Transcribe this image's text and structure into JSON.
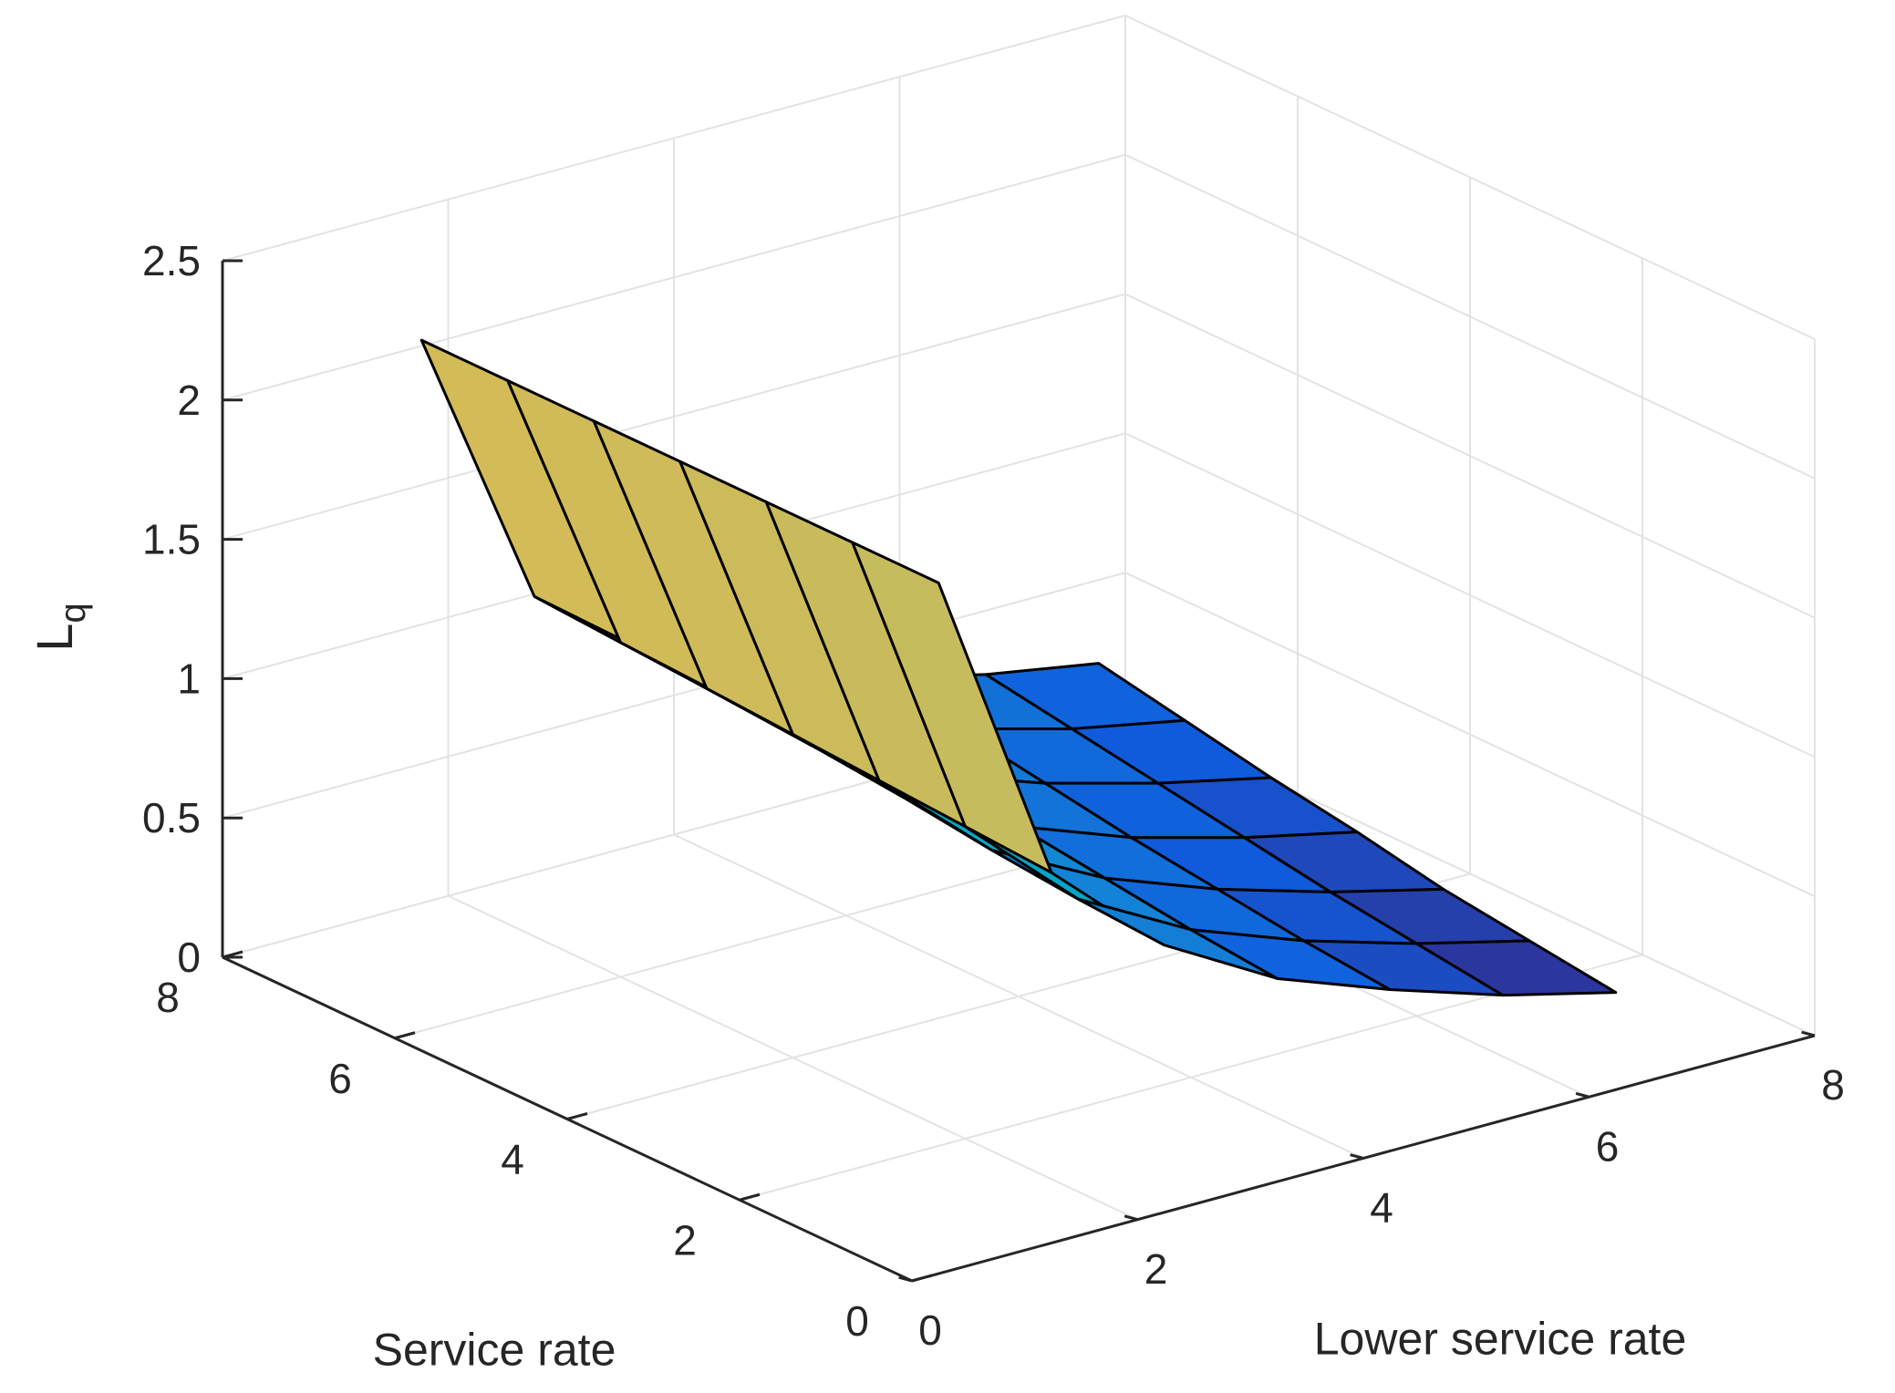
{
  "chart_data": {
    "type": "surface",
    "title": "",
    "xlabel": "Lower service rate",
    "ylabel": "Service rate",
    "zlabel": "L",
    "zlabel_subscript": "q",
    "xlim": [
      0,
      8
    ],
    "ylim": [
      0,
      8
    ],
    "zlim": [
      0,
      2.5
    ],
    "x_ticks": [
      0,
      2,
      4,
      6,
      8
    ],
    "y_ticks": [
      0,
      2,
      4,
      6,
      8
    ],
    "z_ticks": [
      0,
      0.5,
      1,
      1.5,
      2,
      2.5
    ],
    "x_tick_labels": [
      "0",
      "2",
      "4",
      "6",
      "8"
    ],
    "y_tick_labels": [
      "0",
      "2",
      "4",
      "6",
      "8"
    ],
    "z_tick_labels": [
      "0",
      "0.5",
      "1",
      "1.5",
      "2",
      "2.5"
    ],
    "grid": true,
    "colormap": "parula",
    "colormap_colors": [
      "#352a87",
      "#0f5cdd",
      "#1481d6",
      "#06a4ca",
      "#2eb7a4",
      "#87bf77",
      "#d1bb59",
      "#fec832",
      "#f9fb0e"
    ],
    "surface": {
      "x": [
        1,
        2,
        3,
        4,
        5,
        6,
        7
      ],
      "y": [
        1,
        2,
        3,
        4,
        5,
        6,
        7
      ],
      "z": [
        [
          2.25,
          1.1,
          0.73,
          0.5,
          0.35,
          0.22,
          0.12
        ],
        [
          2.25,
          1.12,
          0.75,
          0.53,
          0.38,
          0.26,
          0.16
        ],
        [
          2.25,
          1.14,
          0.78,
          0.57,
          0.42,
          0.3,
          0.2
        ],
        [
          2.25,
          1.16,
          0.82,
          0.61,
          0.46,
          0.35,
          0.26
        ],
        [
          2.25,
          1.18,
          0.85,
          0.65,
          0.51,
          0.4,
          0.31
        ],
        [
          2.25,
          1.2,
          0.88,
          0.69,
          0.56,
          0.45,
          0.37
        ],
        [
          2.25,
          1.22,
          0.91,
          0.73,
          0.6,
          0.5,
          0.43
        ]
      ]
    }
  }
}
